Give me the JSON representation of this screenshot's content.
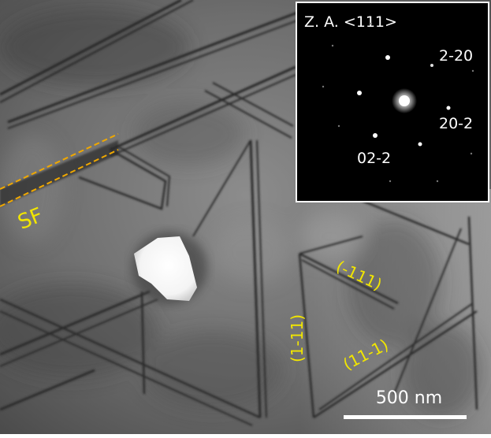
{
  "micrograph": {
    "inset": {
      "zone_axis": "Z. A. <111>",
      "spots": [
        "2-20",
        "20-2",
        "02-2"
      ]
    },
    "stacking_fault_label": "SF",
    "planes": [
      "(-111)",
      "(1-11)",
      "(11-1)"
    ],
    "scale_bar": {
      "label": "500 nm"
    },
    "colors": {
      "annotation": "#f2e600",
      "fault_outline": "#f0a800",
      "inset_background": "#000000",
      "inset_text": "#ffffff",
      "scale_bar": "#ffffff"
    }
  }
}
